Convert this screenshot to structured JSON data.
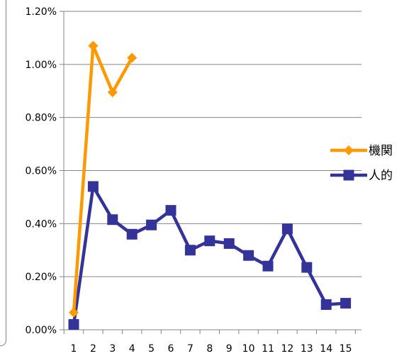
{
  "chart_data": {
    "type": "line",
    "title": "",
    "xlabel": "",
    "ylabel": "",
    "x": [
      1,
      2,
      3,
      4,
      5,
      6,
      7,
      8,
      9,
      10,
      11,
      12,
      13,
      14,
      15
    ],
    "x_tick_labels": [
      "1",
      "2",
      "3",
      "4",
      "5",
      "6",
      "7",
      "8",
      "9",
      "10",
      "11",
      "12",
      "13",
      "14",
      "15"
    ],
    "ylim": [
      0,
      0.012
    ],
    "y_ticks": [
      0,
      0.002,
      0.004,
      0.006,
      0.008,
      0.01,
      0.012
    ],
    "y_tick_labels": [
      "0.00%",
      "0.20%",
      "0.40%",
      "0.60%",
      "0.80%",
      "1.00%",
      "1.20%"
    ],
    "grid": "horizontal",
    "legend_position": "right",
    "series": [
      {
        "name": "機関",
        "color": "#ff9900",
        "marker": "diamond",
        "x": [
          1,
          2,
          3,
          4
        ],
        "values": [
          0.00065,
          0.0107,
          0.00895,
          0.01025
        ]
      },
      {
        "name": "人的",
        "color": "#333399",
        "marker": "square",
        "x": [
          1,
          2,
          3,
          4,
          5,
          6,
          7,
          8,
          9,
          10,
          11,
          12,
          13,
          14,
          15
        ],
        "values": [
          0.0002,
          0.0054,
          0.00415,
          0.0036,
          0.00395,
          0.0045,
          0.003,
          0.00335,
          0.00325,
          0.0028,
          0.0024,
          0.0038,
          0.00235,
          0.00095,
          0.001
        ]
      }
    ]
  }
}
